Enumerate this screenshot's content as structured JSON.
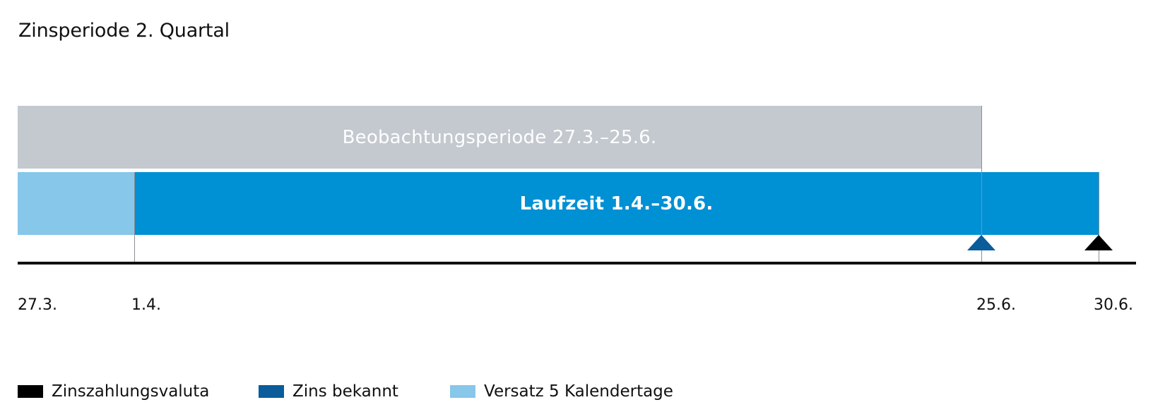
{
  "title": "Zinsperiode 2. Quartal",
  "bars": {
    "observation_label": "Beobachtungsperiode 27.3.–25.6.",
    "term_label": "Laufzeit 1.4.–30.6."
  },
  "timeline": {
    "ticks": [
      "27.3.",
      "1.4.",
      "25.6.",
      "30.6."
    ],
    "markers": [
      {
        "date": "25.6.",
        "meaning": "Zins bekannt"
      },
      {
        "date": "30.6.",
        "meaning": "Zinszahlungsvaluta"
      }
    ]
  },
  "legend": [
    {
      "label": "Zinszahlungsvaluta",
      "color": "#000000"
    },
    {
      "label": "Zins bekannt",
      "color": "#0a5c9a"
    },
    {
      "label": "Versatz 5 Kalendertage",
      "color": "#86c7ea"
    }
  ],
  "colors": {
    "observation": "#c3c9cf",
    "term": "#0090d4",
    "offset": "#86c7ea",
    "interest_known": "#0a5c9a",
    "payment": "#000000"
  }
}
